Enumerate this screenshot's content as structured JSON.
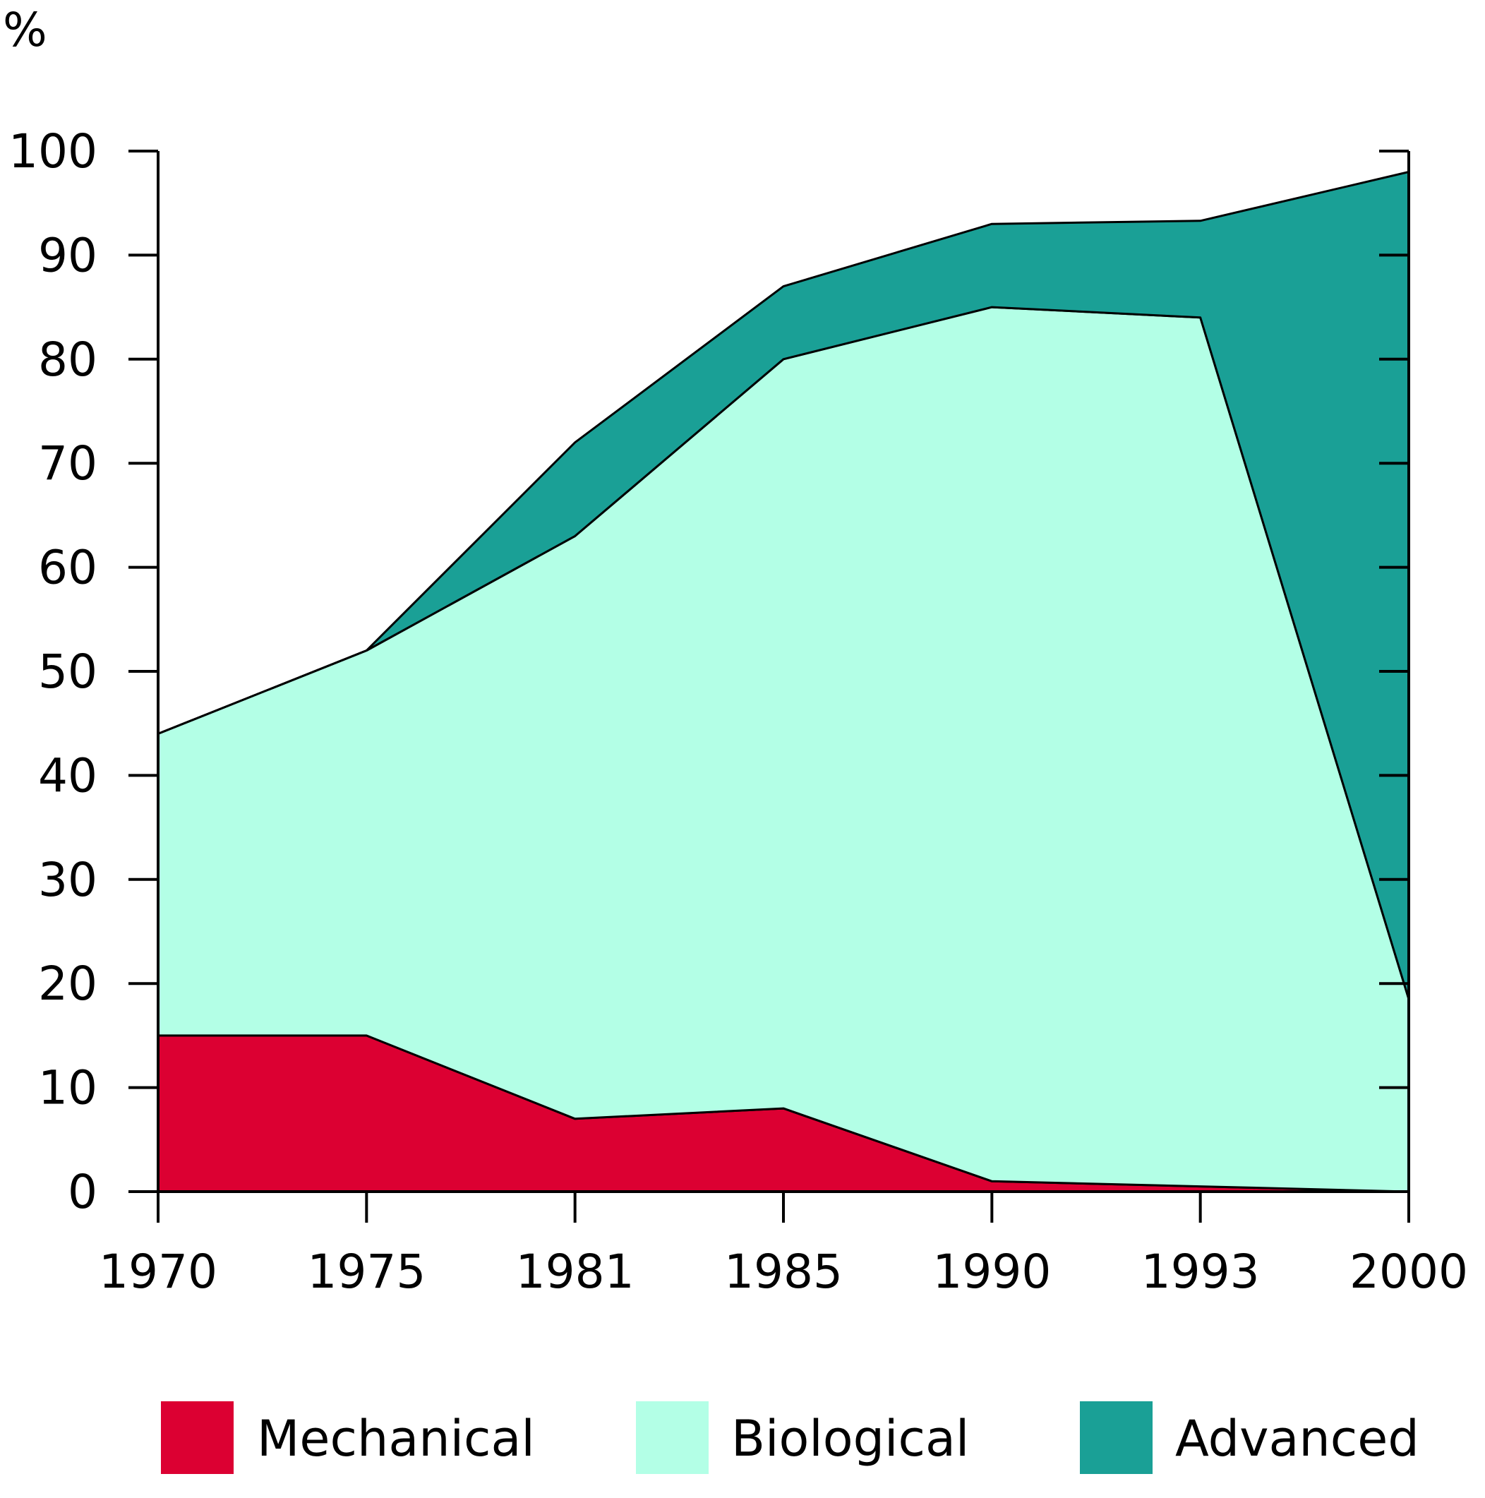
{
  "chart_data": {
    "type": "area",
    "stacked": true,
    "title": "",
    "xlabel": "",
    "ylabel": "%",
    "x": [
      "1970",
      "1975",
      "1981",
      "1985",
      "1990",
      "1993",
      "2000"
    ],
    "ylim": [
      0,
      100
    ],
    "yticks": [
      0,
      10,
      20,
      30,
      40,
      50,
      60,
      70,
      80,
      90,
      100
    ],
    "grid": false,
    "legend": "bottom",
    "series": [
      {
        "name": "Mechanical",
        "color": "#dc0032",
        "values": [
          15,
          15,
          7,
          8,
          1,
          0.5,
          0
        ]
      },
      {
        "name": "Biological",
        "color": "#b3ffe6",
        "values": [
          29,
          37,
          56,
          72,
          84,
          83.5,
          18.5
        ]
      },
      {
        "name": "Advanced",
        "color": "#1aa096",
        "values": [
          0,
          0,
          9,
          7,
          8,
          9.3,
          79.5
        ]
      }
    ]
  }
}
